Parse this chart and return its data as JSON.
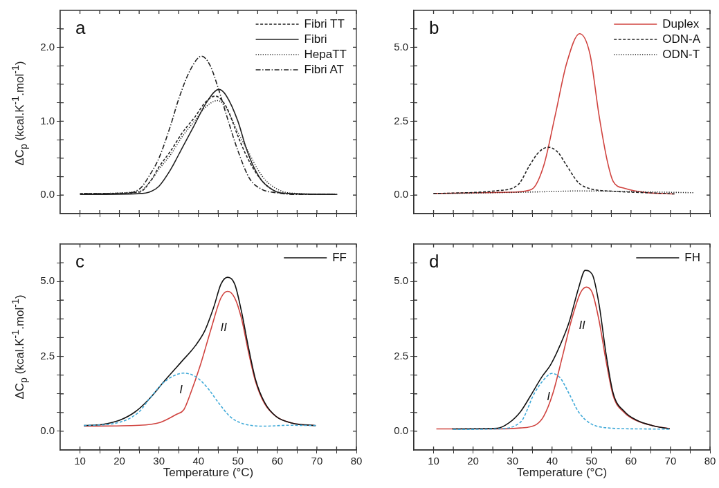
{
  "chart_data": [
    {
      "type": "line",
      "title": "a",
      "ylabel": "ΔC$_{p}$ (kcal.K$^{-1}$.mol$^{-1}$)",
      "legend": "top right",
      "grid": false,
      "tick_labels": "y",
      "xlim": [
        5,
        80
      ],
      "xticks": [
        10,
        {
          "value": 15,
          "label": null
        },
        20,
        {
          "value": 25,
          "label": null
        },
        30,
        {
          "value": 35,
          "label": null
        },
        40,
        {
          "value": 45,
          "label": null
        },
        50,
        {
          "value": 55,
          "label": null
        },
        60,
        {
          "value": 65,
          "label": null
        },
        70,
        {
          "value": 75,
          "label": null
        },
        80
      ],
      "ylim": [
        -0.25,
        2.5
      ],
      "yticks": [
        {
          "value": 0,
          "label": "0.0"
        },
        {
          "value": 0.25,
          "label": null
        },
        {
          "value": 0.5,
          "label": null
        },
        {
          "value": 0.75,
          "label": null
        },
        {
          "value": 1,
          "label": "1.0"
        },
        {
          "value": 1.25,
          "label": null
        },
        {
          "value": 1.5,
          "label": null
        },
        {
          "value": 1.75,
          "label": null
        },
        {
          "value": 2,
          "label": "2.0"
        },
        {
          "value": 2.25,
          "label": null
        }
      ],
      "series": [
        {
          "name": "Fibri TT",
          "color": "#222222",
          "line_style": "dashed",
          "x": [
            10,
            25,
            28,
            30,
            33,
            36,
            39,
            42,
            44.3,
            47,
            50,
            52,
            54,
            56,
            58,
            61,
            74.5
          ],
          "values": [
            0.02,
            0.04,
            0.2,
            0.38,
            0.6,
            0.85,
            1.05,
            1.27,
            1.34,
            1.2,
            0.8,
            0.55,
            0.35,
            0.2,
            0.1,
            0.03,
            0.01
          ]
        },
        {
          "name": "Fibri",
          "color": "#222222",
          "line_style": "solid",
          "x": [
            10,
            25,
            28,
            30,
            33,
            36,
            39,
            42,
            45.2,
            47,
            50,
            52,
            54,
            56,
            58,
            60,
            63,
            75
          ],
          "values": [
            0.01,
            0.02,
            0.05,
            0.12,
            0.35,
            0.65,
            0.95,
            1.25,
            1.43,
            1.35,
            1.0,
            0.65,
            0.38,
            0.2,
            0.1,
            0.04,
            0.02,
            0.01
          ]
        },
        {
          "name": "HepaTT",
          "color": "#222222",
          "line_style": "dotted",
          "x": [
            10.5,
            25,
            28,
            30,
            33,
            36,
            39,
            42,
            44.9,
            47,
            50,
            53,
            55,
            57,
            60,
            63,
            75.5
          ],
          "values": [
            0.02,
            0.05,
            0.2,
            0.35,
            0.55,
            0.8,
            1.0,
            1.2,
            1.28,
            1.18,
            0.85,
            0.55,
            0.35,
            0.2,
            0.08,
            0.03,
            0.01
          ]
        },
        {
          "name": "Fibri AT",
          "color": "#222222",
          "line_style": "dashdot",
          "x": [
            11,
            20,
            25,
            28,
            30,
            33,
            35,
            38,
            40.8,
            43,
            45,
            47,
            50,
            53,
            56,
            60,
            65,
            74
          ],
          "values": [
            0.02,
            0.02,
            0.08,
            0.3,
            0.5,
            0.95,
            1.3,
            1.7,
            1.88,
            1.75,
            1.45,
            1.1,
            0.6,
            0.22,
            0.08,
            0.03,
            0.01,
            0.01
          ]
        }
      ]
    },
    {
      "type": "line",
      "title": "b",
      "legend": "top right",
      "grid": false,
      "tick_labels": "y",
      "xlim": [
        5,
        80
      ],
      "xticks": [
        10,
        {
          "value": 15,
          "label": null
        },
        20,
        {
          "value": 25,
          "label": null
        },
        30,
        {
          "value": 35,
          "label": null
        },
        40,
        {
          "value": 45,
          "label": null
        },
        50,
        {
          "value": 55,
          "label": null
        },
        60,
        {
          "value": 65,
          "label": null
        },
        70,
        {
          "value": 75,
          "label": null
        },
        80
      ],
      "ylim": [
        -0.625,
        6.25
      ],
      "yticks": [
        {
          "value": 0,
          "label": "0.0"
        },
        {
          "value": 0.625,
          "label": null
        },
        {
          "value": 1.25,
          "label": null
        },
        {
          "value": 1.875,
          "label": null
        },
        {
          "value": 2.5,
          "label": "2.5"
        },
        {
          "value": 3.125,
          "label": null
        },
        {
          "value": 3.75,
          "label": null
        },
        {
          "value": 4.375,
          "label": null
        },
        {
          "value": 5,
          "label": "5.0"
        },
        {
          "value": 5.625,
          "label": null
        }
      ],
      "series": [
        {
          "name": "Duplex",
          "color": "#d0433f",
          "line_style": "solid",
          "x": [
            10,
            30,
            34.9,
            37.9,
            40.8,
            43.7,
            47,
            49.6,
            51.9,
            54,
            55.5,
            58.4,
            64.3,
            71
          ],
          "values": [
            0.05,
            0.1,
            0.2,
            1.0,
            2.7,
            4.46,
            5.46,
            4.77,
            2.7,
            1.15,
            0.46,
            0.23,
            0.08,
            0.04
          ]
        },
        {
          "name": "ODN-A",
          "color": "#222222",
          "line_style": "dashed",
          "x": [
            10,
            26.1,
            31.4,
            34.3,
            36.7,
            39,
            41.4,
            43.7,
            46.7,
            49.6,
            55.5,
            64.3,
            71
          ],
          "values": [
            0.05,
            0.15,
            0.35,
            1.0,
            1.46,
            1.62,
            1.46,
            1.0,
            0.42,
            0.22,
            0.13,
            0.08,
            0.04
          ]
        },
        {
          "name": "ODN-T",
          "color": "#222222",
          "line_style": "dotted",
          "x": [
            10,
            25,
            40,
            46,
            60,
            76
          ],
          "values": [
            0.05,
            0.08,
            0.12,
            0.14,
            0.12,
            0.08
          ]
        }
      ]
    },
    {
      "type": "line",
      "title": "c",
      "xlabel": "Temperature (°C)",
      "ylabel": "ΔC$_{p}$ (kcal.K$^{-1}$.mol$^{-1}$)",
      "legend": "top right",
      "grid": false,
      "xlim": [
        5,
        80
      ],
      "xticks": [
        10,
        {
          "value": 15,
          "label": null
        },
        20,
        {
          "value": 25,
          "label": null
        },
        30,
        {
          "value": 35,
          "label": null
        },
        40,
        {
          "value": 45,
          "label": null
        },
        50,
        {
          "value": 55,
          "label": null
        },
        60,
        {
          "value": 65,
          "label": null
        },
        70,
        {
          "value": 75,
          "label": null
        },
        80
      ],
      "ylim": [
        -0.625,
        6.25
      ],
      "yticks": [
        {
          "value": 0,
          "label": "0.0"
        },
        {
          "value": 0.625,
          "label": null
        },
        {
          "value": 1.25,
          "label": null
        },
        {
          "value": 1.875,
          "label": null
        },
        {
          "value": 2.5,
          "label": "2.5"
        },
        {
          "value": 3.125,
          "label": null
        },
        {
          "value": 3.75,
          "label": null
        },
        {
          "value": 4.375,
          "label": null
        },
        {
          "value": 5,
          "label": "5.0"
        },
        {
          "value": 5.625,
          "label": null
        }
      ],
      "annotations": [
        {
          "text": "I",
          "x": 33.5,
          "y": 1.78
        },
        {
          "text": "II",
          "x": 44.3,
          "y": 3.87
        }
      ],
      "series": [
        {
          "name": "FF",
          "color": "#111111",
          "line_style": "solid",
          "x": [
            11,
            15.7,
            19.9,
            24,
            27.5,
            31.6,
            35.7,
            39.2,
            41.6,
            43.9,
            45.7,
            47.4,
            49.2,
            50.9,
            52.7,
            54.5,
            56.8,
            59.7,
            63.8,
            69.7
          ],
          "values": [
            0.19,
            0.23,
            0.36,
            0.65,
            1.07,
            1.71,
            2.32,
            2.85,
            3.35,
            4.15,
            4.91,
            5.14,
            4.91,
            4.0,
            2.78,
            1.71,
            0.95,
            0.49,
            0.27,
            0.19
          ]
        },
        {
          "color": "#d0433f",
          "line_style": "solid",
          "x": [
            11,
            25,
            30.4,
            34.5,
            36.3,
            38,
            40.4,
            43.3,
            45.7,
            47.4,
            49.2,
            50.9,
            52.7,
            54.5,
            56.8,
            59.7,
            63.8,
            69.7
          ],
          "values": [
            0.17,
            0.2,
            0.3,
            0.57,
            0.72,
            1.26,
            2.17,
            3.46,
            4.45,
            4.67,
            4.45,
            3.77,
            2.63,
            1.64,
            0.91,
            0.49,
            0.27,
            0.19
          ]
        },
        {
          "color": "#3fa9d8",
          "line_style": "dashed",
          "x": [
            11,
            19.1,
            25,
            27.5,
            31.6,
            36.3,
            39.2,
            42.1,
            45.1,
            48,
            50.9,
            56.8,
            62.7,
            69.7
          ],
          "values": [
            0.19,
            0.27,
            0.65,
            1.07,
            1.67,
            1.94,
            1.83,
            1.48,
            0.95,
            0.49,
            0.27,
            0.17,
            0.2,
            0.19
          ]
        }
      ]
    },
    {
      "type": "line",
      "title": "d",
      "xlabel": "Temperature (°C)",
      "legend": "top right",
      "grid": false,
      "xlim": [
        5,
        80
      ],
      "xticks": [
        10,
        {
          "value": 15,
          "label": null
        },
        20,
        {
          "value": 25,
          "label": null
        },
        30,
        {
          "value": 35,
          "label": null
        },
        40,
        {
          "value": 45,
          "label": null
        },
        50,
        {
          "value": 55,
          "label": null
        },
        60,
        {
          "value": 65,
          "label": null
        },
        70,
        {
          "value": 75,
          "label": null
        },
        80
      ],
      "ylim": [
        -0.625,
        6.25
      ],
      "yticks": [
        {
          "value": 0,
          "label": "0.0"
        },
        {
          "value": 0.625,
          "label": null
        },
        {
          "value": 1.25,
          "label": null
        },
        {
          "value": 1.875,
          "label": null
        },
        {
          "value": 2.5,
          "label": "2.5"
        },
        {
          "value": 3.125,
          "label": null
        },
        {
          "value": 3.75,
          "label": null
        },
        {
          "value": 4.375,
          "label": null
        },
        {
          "value": 5,
          "label": "5.0"
        },
        {
          "value": 5.625,
          "label": null
        }
      ],
      "annotations": [
        {
          "text": "I",
          "x": 37,
          "y": 1.55
        },
        {
          "text": "II",
          "x": 45.5,
          "y": 3.94
        }
      ],
      "series": [
        {
          "name": "FH",
          "color": "#111111",
          "line_style": "solid",
          "x": [
            14.7,
            26.1,
            29,
            32,
            34.9,
            37.3,
            39.6,
            42,
            44.3,
            46.7,
            48.4,
            50.2,
            51.9,
            53.7,
            55.5,
            58.4,
            61.3,
            65.4,
            69.8
          ],
          "values": [
            0.08,
            0.1,
            0.27,
            0.65,
            1.26,
            1.79,
            2.21,
            2.86,
            3.63,
            4.77,
            5.37,
            5.23,
            4.24,
            2.56,
            1.26,
            0.65,
            0.38,
            0.19,
            0.08
          ]
        },
        {
          "color": "#d0433f",
          "line_style": "solid",
          "x": [
            10.7,
            26.1,
            32,
            36.1,
            37.9,
            40.2,
            42.6,
            44.9,
            47.2,
            48.7,
            50.2,
            51.9,
            53.7,
            55.5,
            58.4,
            61.3,
            65.4,
            69.8
          ],
          "values": [
            0.08,
            0.08,
            0.11,
            0.23,
            0.5,
            1.26,
            2.48,
            3.7,
            4.62,
            4.81,
            4.62,
            3.7,
            2.33,
            1.18,
            0.61,
            0.36,
            0.19,
            0.09
          ]
        },
        {
          "color": "#3fa9d8",
          "line_style": "dashed",
          "x": [
            15,
            26.1,
            32,
            35.5,
            37.9,
            39.9,
            42,
            44.3,
            46.7,
            49.6,
            54.3,
            61.3,
            69.8
          ],
          "values": [
            0.06,
            0.08,
            0.3,
            1.26,
            1.72,
            1.93,
            1.79,
            1.26,
            0.65,
            0.27,
            0.11,
            0.08,
            0.07
          ]
        }
      ]
    }
  ]
}
